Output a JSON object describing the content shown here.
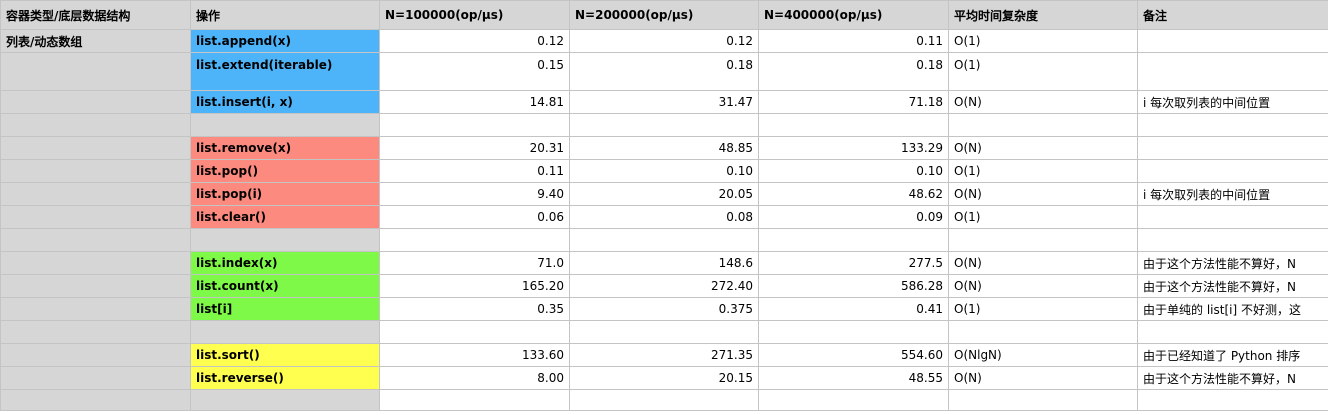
{
  "headers": [
    "容器类型/底层数据结构",
    "操作",
    "N=100000(op/μs)",
    "N=200000(op/μs)",
    "N=400000(op/μs)",
    "平均时间复杂度",
    "备注"
  ],
  "category": "列表/动态数组",
  "colors": {
    "blue": "#4db4f9",
    "red": "#fd8a7f",
    "green": "#7ef948",
    "yellow": "#ffff4f",
    "grey": "#d6d6d6"
  },
  "rows": [
    {
      "op": "list.append(x)",
      "n1": "0.12",
      "n2": "0.12",
      "n3": "0.11",
      "complexity": "O(1)",
      "note": ""
    },
    {
      "op": "list.extend(iterable)",
      "n1": "0.15",
      "n2": "0.18",
      "n3": "0.18",
      "complexity": "O(1)",
      "note": ""
    },
    {
      "op": "list.insert(i, x)",
      "n1": "14.81",
      "n2": "31.47",
      "n3": "71.18",
      "complexity": "O(N)",
      "note": "i 每次取列表的中间位置"
    },
    {
      "op": "list.remove(x)",
      "n1": "20.31",
      "n2": "48.85",
      "n3": "133.29",
      "complexity": "O(N)",
      "note": ""
    },
    {
      "op": "list.pop()",
      "n1": "0.11",
      "n2": "0.10",
      "n3": "0.10",
      "complexity": "O(1)",
      "note": ""
    },
    {
      "op": "list.pop(i)",
      "n1": "9.40",
      "n2": "20.05",
      "n3": "48.62",
      "complexity": "O(N)",
      "note": "i 每次取列表的中间位置"
    },
    {
      "op": "list.clear()",
      "n1": "0.06",
      "n2": "0.08",
      "n3": "0.09",
      "complexity": "O(1)",
      "note": ""
    },
    {
      "op": "list.index(x)",
      "n1": "71.0",
      "n2": "148.6",
      "n3": "277.5",
      "complexity": "O(N)",
      "note": "由于这个方法性能不算好，N"
    },
    {
      "op": "list.count(x)",
      "n1": "165.20",
      "n2": "272.40",
      "n3": "586.28",
      "complexity": "O(N)",
      "note": "由于这个方法性能不算好，N"
    },
    {
      "op": "list[i]",
      "n1": "0.35",
      "n2": "0.375",
      "n3": "0.41",
      "complexity": "O(1)",
      "note": "由于单纯的 list[i] 不好测，这"
    },
    {
      "op": "list.sort()",
      "n1": "133.60",
      "n2": "271.35",
      "n3": "554.60",
      "complexity": "O(NlgN)",
      "note": "由于已经知道了 Python 排序"
    },
    {
      "op": "list.reverse()",
      "n1": "8.00",
      "n2": "20.15",
      "n3": "48.55",
      "complexity": "O(N)",
      "note": "由于这个方法性能不算好，N"
    }
  ]
}
